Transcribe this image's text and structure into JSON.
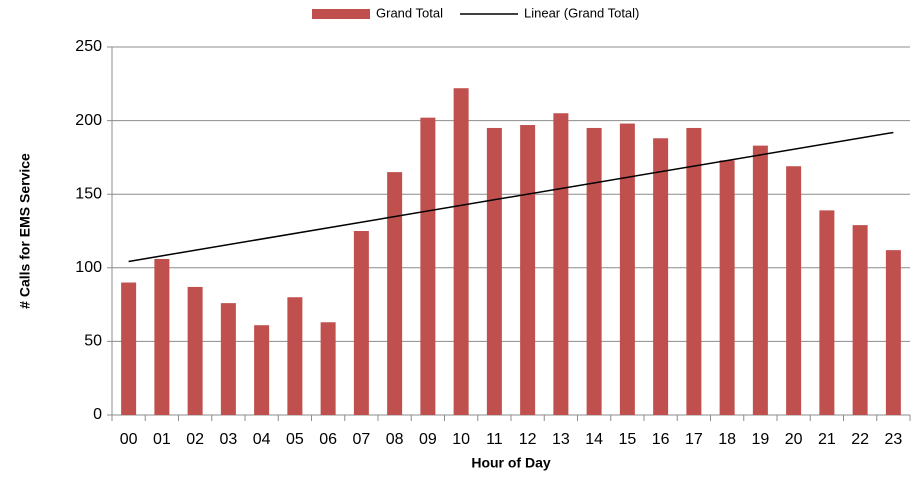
{
  "chart_data": {
    "type": "bar",
    "xlabel": "Hour of Day",
    "ylabel": "# Calls for EMS Service",
    "categories": [
      "00",
      "01",
      "02",
      "03",
      "04",
      "05",
      "06",
      "07",
      "08",
      "09",
      "10",
      "11",
      "12",
      "13",
      "14",
      "15",
      "16",
      "17",
      "18",
      "19",
      "20",
      "21",
      "22",
      "23"
    ],
    "series": [
      {
        "name": "Grand Total",
        "color": "#c0504d",
        "values": [
          90,
          106,
          87,
          76,
          61,
          80,
          63,
          125,
          165,
          202,
          222,
          195,
          197,
          205,
          195,
          198,
          188,
          195,
          173,
          183,
          169,
          139,
          129,
          112
        ]
      }
    ],
    "trendline": {
      "type": "linear",
      "name": "Linear (Grand Total)",
      "color": "#000000"
    },
    "ylim": [
      0,
      250
    ],
    "yticks": [
      0,
      50,
      100,
      150,
      200,
      250
    ],
    "grid": true,
    "legend": "top"
  }
}
